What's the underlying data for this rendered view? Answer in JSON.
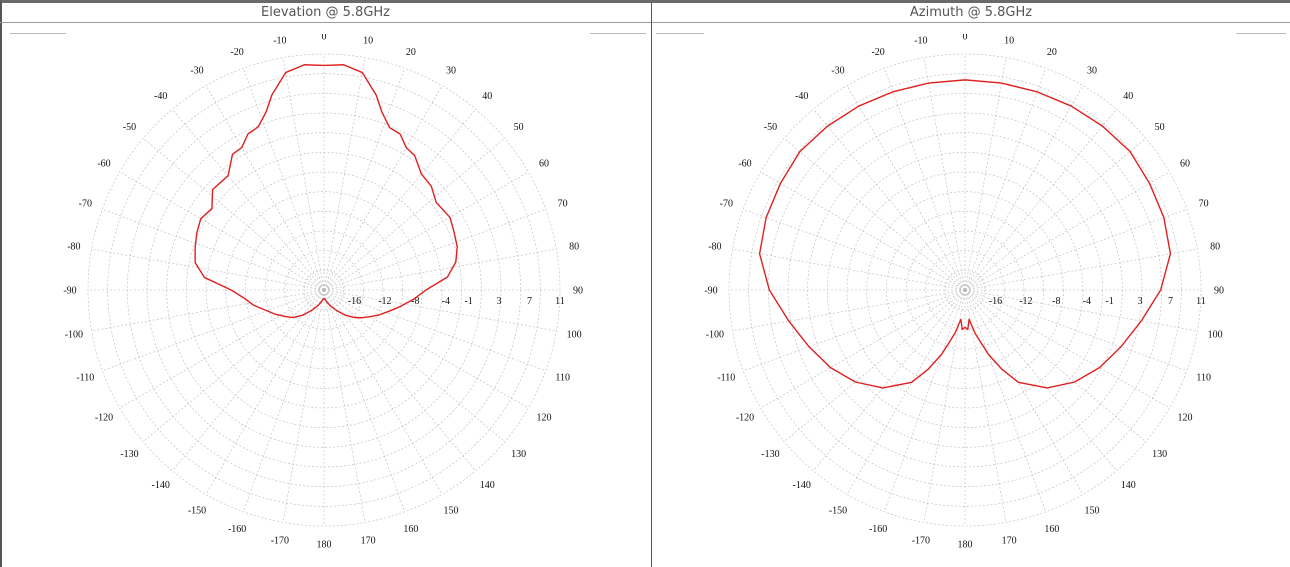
{
  "panels": {
    "elevation": {
      "title": "Elevation @ 5.8GHz"
    },
    "azimuth": {
      "title": "Azimuth @ 5.8GHz"
    }
  },
  "colors": {
    "pattern": "#e02020",
    "grid": "#b8b8b8",
    "text": "#111111",
    "caption": "#555555"
  },
  "chart_data": [
    {
      "type": "line",
      "coordinate_system": "polar",
      "title": "Elevation @ 5.8GHz",
      "angle_tick_labels": [
        "0",
        "10",
        "20",
        "30",
        "40",
        "50",
        "60",
        "70",
        "80",
        "90",
        "100",
        "110",
        "120",
        "130",
        "140",
        "150",
        "160",
        "170",
        "180",
        "-170",
        "-160",
        "-150",
        "-140",
        "-130",
        "-120",
        "-110",
        "-100",
        "-90",
        "-80",
        "-70",
        "-60",
        "-50",
        "-40",
        "-30",
        "-20",
        "-10"
      ],
      "radial_tick_labels": [
        "-16",
        "-12",
        "-8",
        "-4",
        "-1",
        "3",
        "7",
        "11"
      ],
      "radial_range": [
        -20,
        11
      ],
      "grid": true,
      "series": [
        {
          "points_deg_db": [
            [
              0,
              9.5
            ],
            [
              5,
              9.7
            ],
            [
              10,
              9.0
            ],
            [
              15,
              6.5
            ],
            [
              18,
              4.6
            ],
            [
              22,
              3.0
            ],
            [
              26,
              2.8
            ],
            [
              30,
              1.6
            ],
            [
              34,
              1.3
            ],
            [
              40,
              -0.1
            ],
            [
              46,
              -0.4
            ],
            [
              52,
              -1.3
            ],
            [
              60,
              -0.9
            ],
            [
              66,
              -1.3
            ],
            [
              72,
              -1.6
            ],
            [
              78,
              -2.3
            ],
            [
              84,
              -3.7
            ],
            [
              90,
              -6.6
            ],
            [
              96,
              -8.2
            ],
            [
              102,
              -9.7
            ],
            [
              108,
              -11.0
            ],
            [
              114,
              -12.0
            ],
            [
              120,
              -13.0
            ],
            [
              126,
              -13.8
            ],
            [
              132,
              -14.6
            ],
            [
              140,
              -15.7
            ],
            [
              148,
              -16.8
            ],
            [
              156,
              -17.6
            ],
            [
              164,
              -18.2
            ],
            [
              172,
              -18.7
            ],
            [
              180,
              -18.9
            ],
            [
              188,
              -18.7
            ],
            [
              196,
              -18.2
            ],
            [
              204,
              -17.6
            ],
            [
              212,
              -16.8
            ],
            [
              220,
              -15.7
            ],
            [
              228,
              -14.6
            ],
            [
              236,
              -13.8
            ],
            [
              244,
              -12.8
            ],
            [
              252,
              -11.7
            ],
            [
              258,
              -10.5
            ],
            [
              264,
              -9.5
            ],
            [
              270,
              -7.8
            ],
            [
              276,
              -4.2
            ],
            [
              282,
              -2.7
            ],
            [
              288,
              -2.2
            ],
            [
              294,
              -1.7
            ],
            [
              300,
              -1.3
            ],
            [
              306,
              -1.8
            ],
            [
              312,
              -0.3
            ],
            [
              320,
              -0.4
            ],
            [
              326,
              1.5
            ],
            [
              330,
              1.6
            ],
            [
              334,
              2.8
            ],
            [
              338,
              3.1
            ],
            [
              342,
              4.6
            ],
            [
              345,
              6.5
            ],
            [
              350,
              9.0
            ],
            [
              355,
              9.7
            ],
            [
              360,
              9.5
            ]
          ]
        }
      ]
    },
    {
      "type": "line",
      "coordinate_system": "polar",
      "title": "Azimuth @ 5.8GHz",
      "angle_tick_labels": [
        "0",
        "10",
        "20",
        "30",
        "40",
        "50",
        "60",
        "70",
        "80",
        "90",
        "100",
        "110",
        "120",
        "130",
        "140",
        "150",
        "160",
        "170",
        "180",
        "-170",
        "-160",
        "-150",
        "-140",
        "-130",
        "-120",
        "-110",
        "-100",
        "-90",
        "-80",
        "-70",
        "-60",
        "-50",
        "-40",
        "-30",
        "-20",
        "-10"
      ],
      "radial_tick_labels": [
        "-16",
        "-12",
        "-8",
        "-4",
        "-1",
        "3",
        "7",
        "11"
      ],
      "radial_range": [
        -20,
        11
      ],
      "grid": true,
      "series": [
        {
          "points_deg_db": [
            [
              0,
              7.6
            ],
            [
              10,
              7.6
            ],
            [
              20,
              7.7
            ],
            [
              30,
              7.9
            ],
            [
              40,
              8.1
            ],
            [
              50,
              8.3
            ],
            [
              60,
              8.0
            ],
            [
              70,
              7.8
            ],
            [
              80,
              7.4
            ],
            [
              90,
              5.7
            ],
            [
              100,
              3.5
            ],
            [
              110,
              1.8
            ],
            [
              120,
              0.4
            ],
            [
              130,
              -1.2
            ],
            [
              140,
              -3.2
            ],
            [
              150,
              -6.0
            ],
            [
              155,
              -8.5
            ],
            [
              160,
              -11.0
            ],
            [
              163,
              -12.7
            ],
            [
              167,
              -14.2
            ],
            [
              172,
              -16.1
            ],
            [
              176,
              -14.8
            ],
            [
              180,
              -15.1
            ],
            [
              184,
              -14.8
            ],
            [
              188,
              -16.1
            ],
            [
              193,
              -14.2
            ],
            [
              197,
              -12.7
            ],
            [
              200,
              -11.0
            ],
            [
              205,
              -8.5
            ],
            [
              210,
              -6.0
            ],
            [
              220,
              -3.2
            ],
            [
              230,
              -1.2
            ],
            [
              240,
              0.4
            ],
            [
              250,
              1.8
            ],
            [
              260,
              3.5
            ],
            [
              270,
              5.7
            ],
            [
              280,
              7.4
            ],
            [
              290,
              7.8
            ],
            [
              300,
              8.0
            ],
            [
              310,
              8.3
            ],
            [
              320,
              8.1
            ],
            [
              330,
              7.9
            ],
            [
              340,
              7.7
            ],
            [
              350,
              7.6
            ],
            [
              360,
              7.6
            ]
          ]
        }
      ]
    }
  ]
}
